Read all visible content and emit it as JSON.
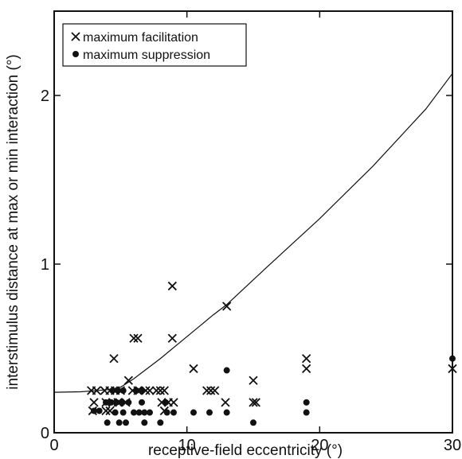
{
  "chart_data": {
    "type": "scatter",
    "xlabel": "receptive-field eccentricity  (°)",
    "ylabel": "interstimulus distance at max or min interaction  (°)",
    "xlim": [
      0,
      30
    ],
    "ylim": [
      0,
      2.5
    ],
    "xticks": [
      0,
      10,
      20,
      30
    ],
    "yticks": [
      0,
      1,
      2
    ],
    "grid": false,
    "legend_position": "top-left",
    "series": [
      {
        "name": "maximum facilitation",
        "marker": "x",
        "color": "#111111",
        "points": [
          [
            2.8,
            0.25
          ],
          [
            3.2,
            0.25
          ],
          [
            3.0,
            0.18
          ],
          [
            2.9,
            0.13
          ],
          [
            3.8,
            0.25
          ],
          [
            4.2,
            0.25
          ],
          [
            4.5,
            0.44
          ],
          [
            3.9,
            0.18
          ],
          [
            4.4,
            0.18
          ],
          [
            4.8,
            0.18
          ],
          [
            3.9,
            0.13
          ],
          [
            4.2,
            0.13
          ],
          [
            4.6,
            0.25
          ],
          [
            5.0,
            0.25
          ],
          [
            5.4,
            0.18
          ],
          [
            5.6,
            0.31
          ],
          [
            5.9,
            0.25
          ],
          [
            6.3,
            0.25
          ],
          [
            6.0,
            0.56
          ],
          [
            6.3,
            0.56
          ],
          [
            6.9,
            0.25
          ],
          [
            7.2,
            0.25
          ],
          [
            7.7,
            0.25
          ],
          [
            8.0,
            0.25
          ],
          [
            8.3,
            0.25
          ],
          [
            8.1,
            0.18
          ],
          [
            8.6,
            0.18
          ],
          [
            8.3,
            0.13
          ],
          [
            9.0,
            0.18
          ],
          [
            8.9,
            0.87
          ],
          [
            8.9,
            0.56
          ],
          [
            10.5,
            0.38
          ],
          [
            11.5,
            0.25
          ],
          [
            11.8,
            0.25
          ],
          [
            12.1,
            0.25
          ],
          [
            13.0,
            0.75
          ],
          [
            12.9,
            0.18
          ],
          [
            15.0,
            0.31
          ],
          [
            15.0,
            0.18
          ],
          [
            15.2,
            0.18
          ],
          [
            19.0,
            0.44
          ],
          [
            19.0,
            0.38
          ],
          [
            30.0,
            0.38
          ]
        ]
      },
      {
        "name": "maximum suppression",
        "marker": "dot",
        "color": "#111111",
        "points": [
          [
            3.0,
            0.13
          ],
          [
            3.4,
            0.13
          ],
          [
            3.9,
            0.18
          ],
          [
            4.3,
            0.18
          ],
          [
            4.7,
            0.18
          ],
          [
            5.1,
            0.18
          ],
          [
            4.0,
            0.06
          ],
          [
            4.6,
            0.12
          ],
          [
            5.2,
            0.12
          ],
          [
            4.4,
            0.25
          ],
          [
            4.8,
            0.25
          ],
          [
            5.4,
            0.06
          ],
          [
            5.6,
            0.18
          ],
          [
            6.0,
            0.12
          ],
          [
            6.4,
            0.12
          ],
          [
            6.8,
            0.12
          ],
          [
            7.2,
            0.12
          ],
          [
            6.6,
            0.18
          ],
          [
            4.9,
            0.06
          ],
          [
            5.2,
            0.25
          ],
          [
            6.2,
            0.25
          ],
          [
            6.6,
            0.25
          ],
          [
            6.8,
            0.06
          ],
          [
            8.0,
            0.06
          ],
          [
            8.5,
            0.12
          ],
          [
            8.4,
            0.18
          ],
          [
            9.0,
            0.12
          ],
          [
            10.5,
            0.12
          ],
          [
            11.7,
            0.12
          ],
          [
            13.0,
            0.37
          ],
          [
            13.0,
            0.12
          ],
          [
            15.0,
            0.06
          ],
          [
            19.0,
            0.18
          ],
          [
            19.0,
            0.12
          ],
          [
            30.0,
            0.44
          ]
        ]
      }
    ],
    "fit_curve": {
      "points": [
        [
          0,
          0.24
        ],
        [
          2,
          0.243
        ],
        [
          4,
          0.255
        ],
        [
          5,
          0.27
        ],
        [
          6,
          0.32
        ],
        [
          8,
          0.44
        ],
        [
          10,
          0.57
        ],
        [
          12,
          0.7
        ],
        [
          13,
          0.76
        ],
        [
          16,
          0.98
        ],
        [
          20,
          1.27
        ],
        [
          24,
          1.58
        ],
        [
          28,
          1.92
        ],
        [
          30,
          2.13
        ]
      ],
      "color": "#111111"
    }
  }
}
